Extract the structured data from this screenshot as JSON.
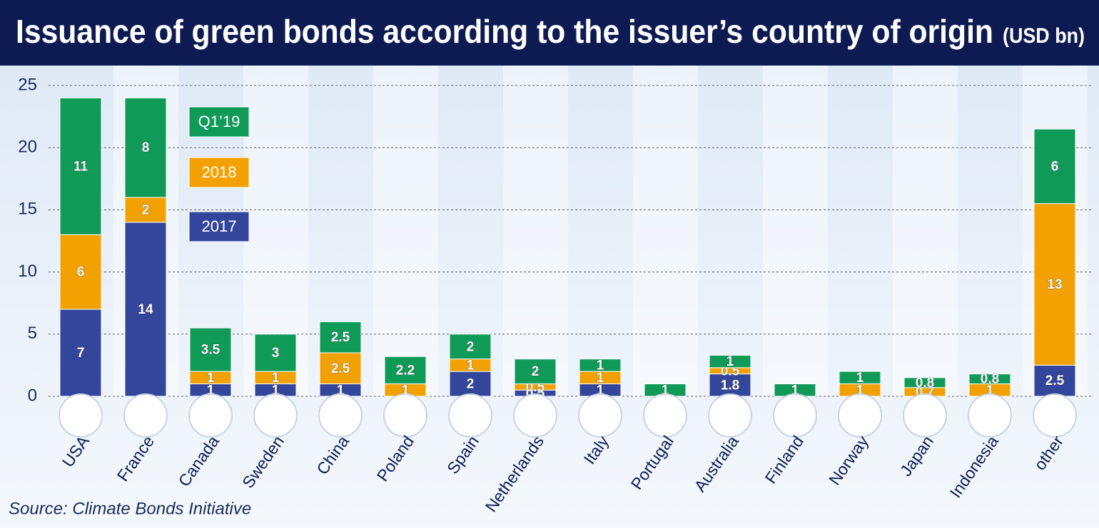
{
  "chart_data": {
    "type": "stacked-bar",
    "title": "Issuance of green bonds according to the issuer’s country of origin",
    "unit": "(USD bn)",
    "source": "Source: Climate Bonds Initiative",
    "categories": [
      "USA",
      "France",
      "Canada",
      "Sweden",
      "China",
      "Poland",
      "Spain",
      "Netherlands",
      "Italy",
      "Portugal",
      "Australia",
      "Finland",
      "Norway",
      "Japan",
      "Indonesia",
      "other"
    ],
    "series": [
      {
        "name": "2017",
        "color": "#34469c",
        "values": [
          7,
          14,
          1,
          1,
          1,
          null,
          2,
          0.5,
          1,
          null,
          1.8,
          null,
          null,
          null,
          null,
          2.5
        ]
      },
      {
        "name": "2018",
        "color": "#f2a100",
        "values": [
          6,
          2,
          1,
          1,
          2.5,
          1,
          1,
          0.5,
          1,
          null,
          0.5,
          null,
          1,
          0.7,
          1,
          13
        ]
      },
      {
        "name": "Q1’19",
        "color": "#0f9a58",
        "values": [
          11,
          8,
          3.5,
          3,
          2.5,
          2.2,
          2,
          2,
          1,
          1,
          1,
          1,
          1,
          0.8,
          0.8,
          6
        ]
      }
    ],
    "ylim": [
      0,
      25
    ],
    "yticks": [
      0,
      5,
      10,
      15,
      20,
      25
    ],
    "grid": true
  }
}
